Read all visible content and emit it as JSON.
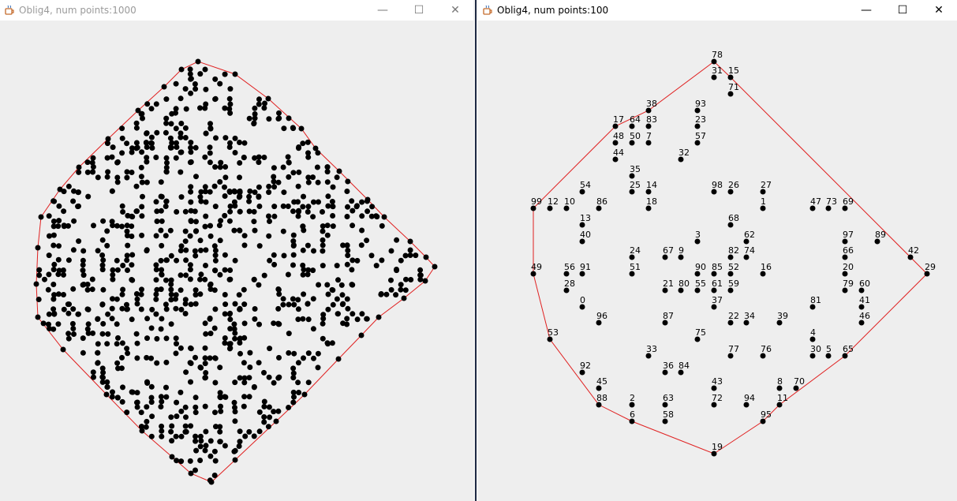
{
  "left_window": {
    "title": "Oblig4, num points:1000",
    "app_icon": "java-cup-icon",
    "controls": {
      "minimize": "—",
      "maximize": "☐",
      "close": "✕"
    },
    "hull_color": "#e02020",
    "point_color": "#000000"
  },
  "right_window": {
    "title": "Oblig4, num points:100",
    "app_icon": "java-cup-icon",
    "controls": {
      "minimize": "—",
      "maximize": "☐",
      "close": "✕"
    },
    "hull_color": "#e02020",
    "point_color": "#000000",
    "points": [
      {
        "label": "78"
      },
      {
        "label": "31"
      },
      {
        "label": "15"
      },
      {
        "label": "71"
      },
      {
        "label": "38"
      },
      {
        "label": "93"
      },
      {
        "label": "17"
      },
      {
        "label": "64"
      },
      {
        "label": "83"
      },
      {
        "label": "23"
      },
      {
        "label": "48"
      },
      {
        "label": "50"
      },
      {
        "label": "7"
      },
      {
        "label": "57"
      },
      {
        "label": "44"
      },
      {
        "label": "32"
      },
      {
        "label": "35"
      },
      {
        "label": "54"
      },
      {
        "label": "25"
      },
      {
        "label": "14"
      },
      {
        "label": "98"
      },
      {
        "label": "26"
      },
      {
        "label": "27"
      },
      {
        "label": "99"
      },
      {
        "label": "12"
      },
      {
        "label": "10"
      },
      {
        "label": "86"
      },
      {
        "label": "18"
      },
      {
        "label": "1"
      },
      {
        "label": "47"
      },
      {
        "label": "73"
      },
      {
        "label": "69"
      },
      {
        "label": "13"
      },
      {
        "label": "68"
      },
      {
        "label": "40"
      },
      {
        "label": "3"
      },
      {
        "label": "62"
      },
      {
        "label": "97"
      },
      {
        "label": "89"
      },
      {
        "label": "24"
      },
      {
        "label": "67"
      },
      {
        "label": "9"
      },
      {
        "label": "82"
      },
      {
        "label": "74"
      },
      {
        "label": "66"
      },
      {
        "label": "42"
      },
      {
        "label": "29"
      },
      {
        "label": "49"
      },
      {
        "label": "56"
      },
      {
        "label": "91"
      },
      {
        "label": "51"
      },
      {
        "label": "90"
      },
      {
        "label": "85"
      },
      {
        "label": "52"
      },
      {
        "label": "16"
      },
      {
        "label": "20"
      },
      {
        "label": "28"
      },
      {
        "label": "21"
      },
      {
        "label": "80"
      },
      {
        "label": "55"
      },
      {
        "label": "61"
      },
      {
        "label": "59"
      },
      {
        "label": "79"
      },
      {
        "label": "60"
      },
      {
        "label": "0"
      },
      {
        "label": "37"
      },
      {
        "label": "81"
      },
      {
        "label": "41"
      },
      {
        "label": "96"
      },
      {
        "label": "87"
      },
      {
        "label": "22"
      },
      {
        "label": "34"
      },
      {
        "label": "39"
      },
      {
        "label": "46"
      },
      {
        "label": "53"
      },
      {
        "label": "75"
      },
      {
        "label": "4"
      },
      {
        "label": "33"
      },
      {
        "label": "77"
      },
      {
        "label": "76"
      },
      {
        "label": "30"
      },
      {
        "label": "5"
      },
      {
        "label": "65"
      },
      {
        "label": "92"
      },
      {
        "label": "36"
      },
      {
        "label": "84"
      },
      {
        "label": "45"
      },
      {
        "label": "43"
      },
      {
        "label": "8"
      },
      {
        "label": "70"
      },
      {
        "label": "88"
      },
      {
        "label": "2"
      },
      {
        "label": "63"
      },
      {
        "label": "72"
      },
      {
        "label": "94"
      },
      {
        "label": "11"
      },
      {
        "label": "6"
      },
      {
        "label": "58"
      },
      {
        "label": "95"
      },
      {
        "label": "19"
      }
    ],
    "hull_order": [
      "78",
      "15",
      "29",
      "65",
      "11",
      "95",
      "19",
      "6",
      "88",
      "53",
      "49",
      "99",
      "17",
      "38",
      "78"
    ]
  }
}
